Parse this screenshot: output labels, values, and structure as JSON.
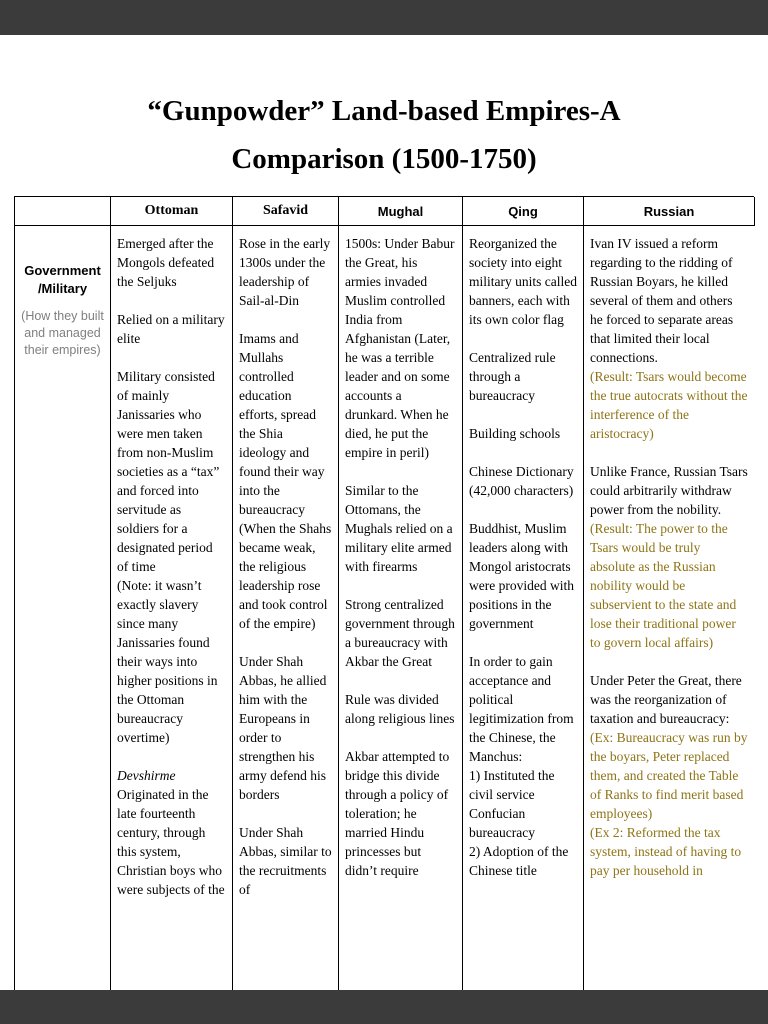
{
  "colors": {
    "chrome_bg": "#3b3b3b",
    "page_bg": "#ffffff",
    "result_text_gold": "#8e7416",
    "row_label_gray": "#7f7f7f"
  },
  "title": {
    "line1": "“Gunpowder” Land-based Empires-A",
    "line2": "Comparison (1500-1750)"
  },
  "table": {
    "headers": [
      "Ottoman",
      "Safavid",
      "Mughal",
      "Qing",
      "Russian"
    ],
    "row_label": {
      "line1": "Government",
      "line2": "/Military",
      "note": "(How they built and managed their empires)"
    },
    "ottoman": [
      "Emerged after the Mongols defeated the Seljuks",
      "Relied on a military elite",
      "Military consisted of mainly Janissaries who were men taken from non-Muslim societies as a “tax” and forced into servitude as soldiers for a designated period of time",
      "(Note: it wasn’t exactly slavery since many Janissaries found their ways into higher positions in the Ottoman bureaucracy overtime)",
      "Devshirme",
      "Originated in the late fourteenth century, through this system, Christian boys who were subjects of the"
    ],
    "safavid": [
      "Rose in the early 1300s under the leadership of Sail-al-Din",
      "Imams and Mullahs controlled education efforts, spread the Shia ideology and found their way into the bureaucracy (When the Shahs became weak, the religious leadership rose and took control of the empire)",
      "Under Shah Abbas, he allied him with the Europeans in order to strengthen his army defend his borders",
      "Under Shah Abbas, similar to the recruitments of"
    ],
    "mughal": [
      "1500s: Under Babur the Great, his armies invaded Muslim controlled India from Afghanistan (Later, he was a terrible leader and on some accounts a drunkard. When he died, he put the empire in peril)",
      "Similar to the Ottomans, the Mughals relied on a military elite armed with firearms",
      "Strong centralized government through a bureaucracy with Akbar the Great",
      "Rule was divided along religious lines",
      "Akbar attempted to bridge this divide through a policy of toleration; he married Hindu princesses but didn’t require"
    ],
    "qing": [
      "Reorganized the society into eight military units called banners, each with its own color flag",
      "Centralized rule through a bureaucracy",
      "Building schools",
      "Chinese Dictionary (42,000 characters)",
      "Buddhist, Muslim leaders along with Mongol aristocrats were provided with positions in the government",
      "In order to gain acceptance and political legitimization from the Chinese, the Manchus:",
      "1) Instituted the civil service Confucian bureaucracy",
      "2) Adoption of the Chinese title"
    ],
    "russian": [
      "Ivan IV issued a reform regarding to the ridding of Russian Boyars, he killed several of them and others he forced to separate areas that limited their local connections.",
      "(Result: Tsars would become the true autocrats without the interference of the aristocracy)",
      "Unlike France, Russian Tsars could arbitrarily withdraw power from the nobility.",
      "(Result: The power to the Tsars would be truly absolute as the Russian nobility would be subservient to the state and lose their traditional power to govern local affairs)",
      "Under Peter the Great, there was the reorganization of taxation and bureaucracy:",
      "(Ex: Bureaucracy was run by the boyars, Peter replaced them, and created the Table of Ranks to find merit based employees)",
      "(Ex 2: Reformed the tax system, instead of having to pay per household in"
    ]
  }
}
